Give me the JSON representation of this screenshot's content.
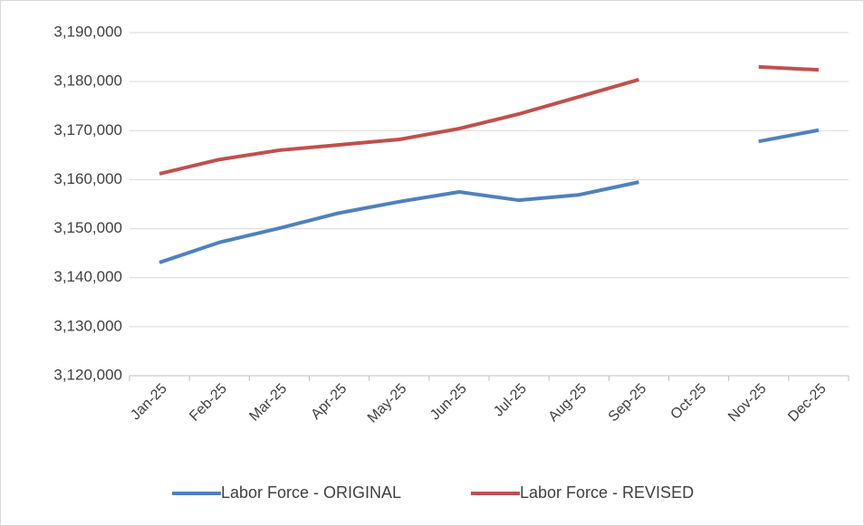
{
  "chart_data": {
    "type": "line",
    "categories": [
      "Jan-25",
      "Feb-25",
      "Mar-25",
      "Apr-25",
      "May-25",
      "Jun-25",
      "Jul-25",
      "Aug-25",
      "Sep-25",
      "Oct-25",
      "Nov-25",
      "Dec-25"
    ],
    "series": [
      {
        "name": "Labor Force - ORIGINAL",
        "color": "#4f81bd",
        "values": [
          3143100,
          3147200,
          3150100,
          3153200,
          3155500,
          3157500,
          3155800,
          3156900,
          3159500,
          null,
          3167800,
          3170100
        ]
      },
      {
        "name": "Labor Force - REVISED",
        "color": "#c0504d",
        "values": [
          3161200,
          3164100,
          3166000,
          3167100,
          3168200,
          3170400,
          3173400,
          3176900,
          3180400,
          null,
          3183000,
          3182400
        ]
      }
    ],
    "ylim": [
      3120000,
      3190000
    ],
    "yticks": [
      {
        "value": 3120000,
        "label": "3,120,000"
      },
      {
        "value": 3130000,
        "label": "3,130,000"
      },
      {
        "value": 3140000,
        "label": "3,140,000"
      },
      {
        "value": 3150000,
        "label": "3,150,000"
      },
      {
        "value": 3160000,
        "label": "3,160,000"
      },
      {
        "value": 3170000,
        "label": "3,170,000"
      },
      {
        "value": 3180000,
        "label": "3,180,000"
      },
      {
        "value": 3190000,
        "label": "3,190,000"
      }
    ],
    "grid": true,
    "legend": "bottom"
  }
}
